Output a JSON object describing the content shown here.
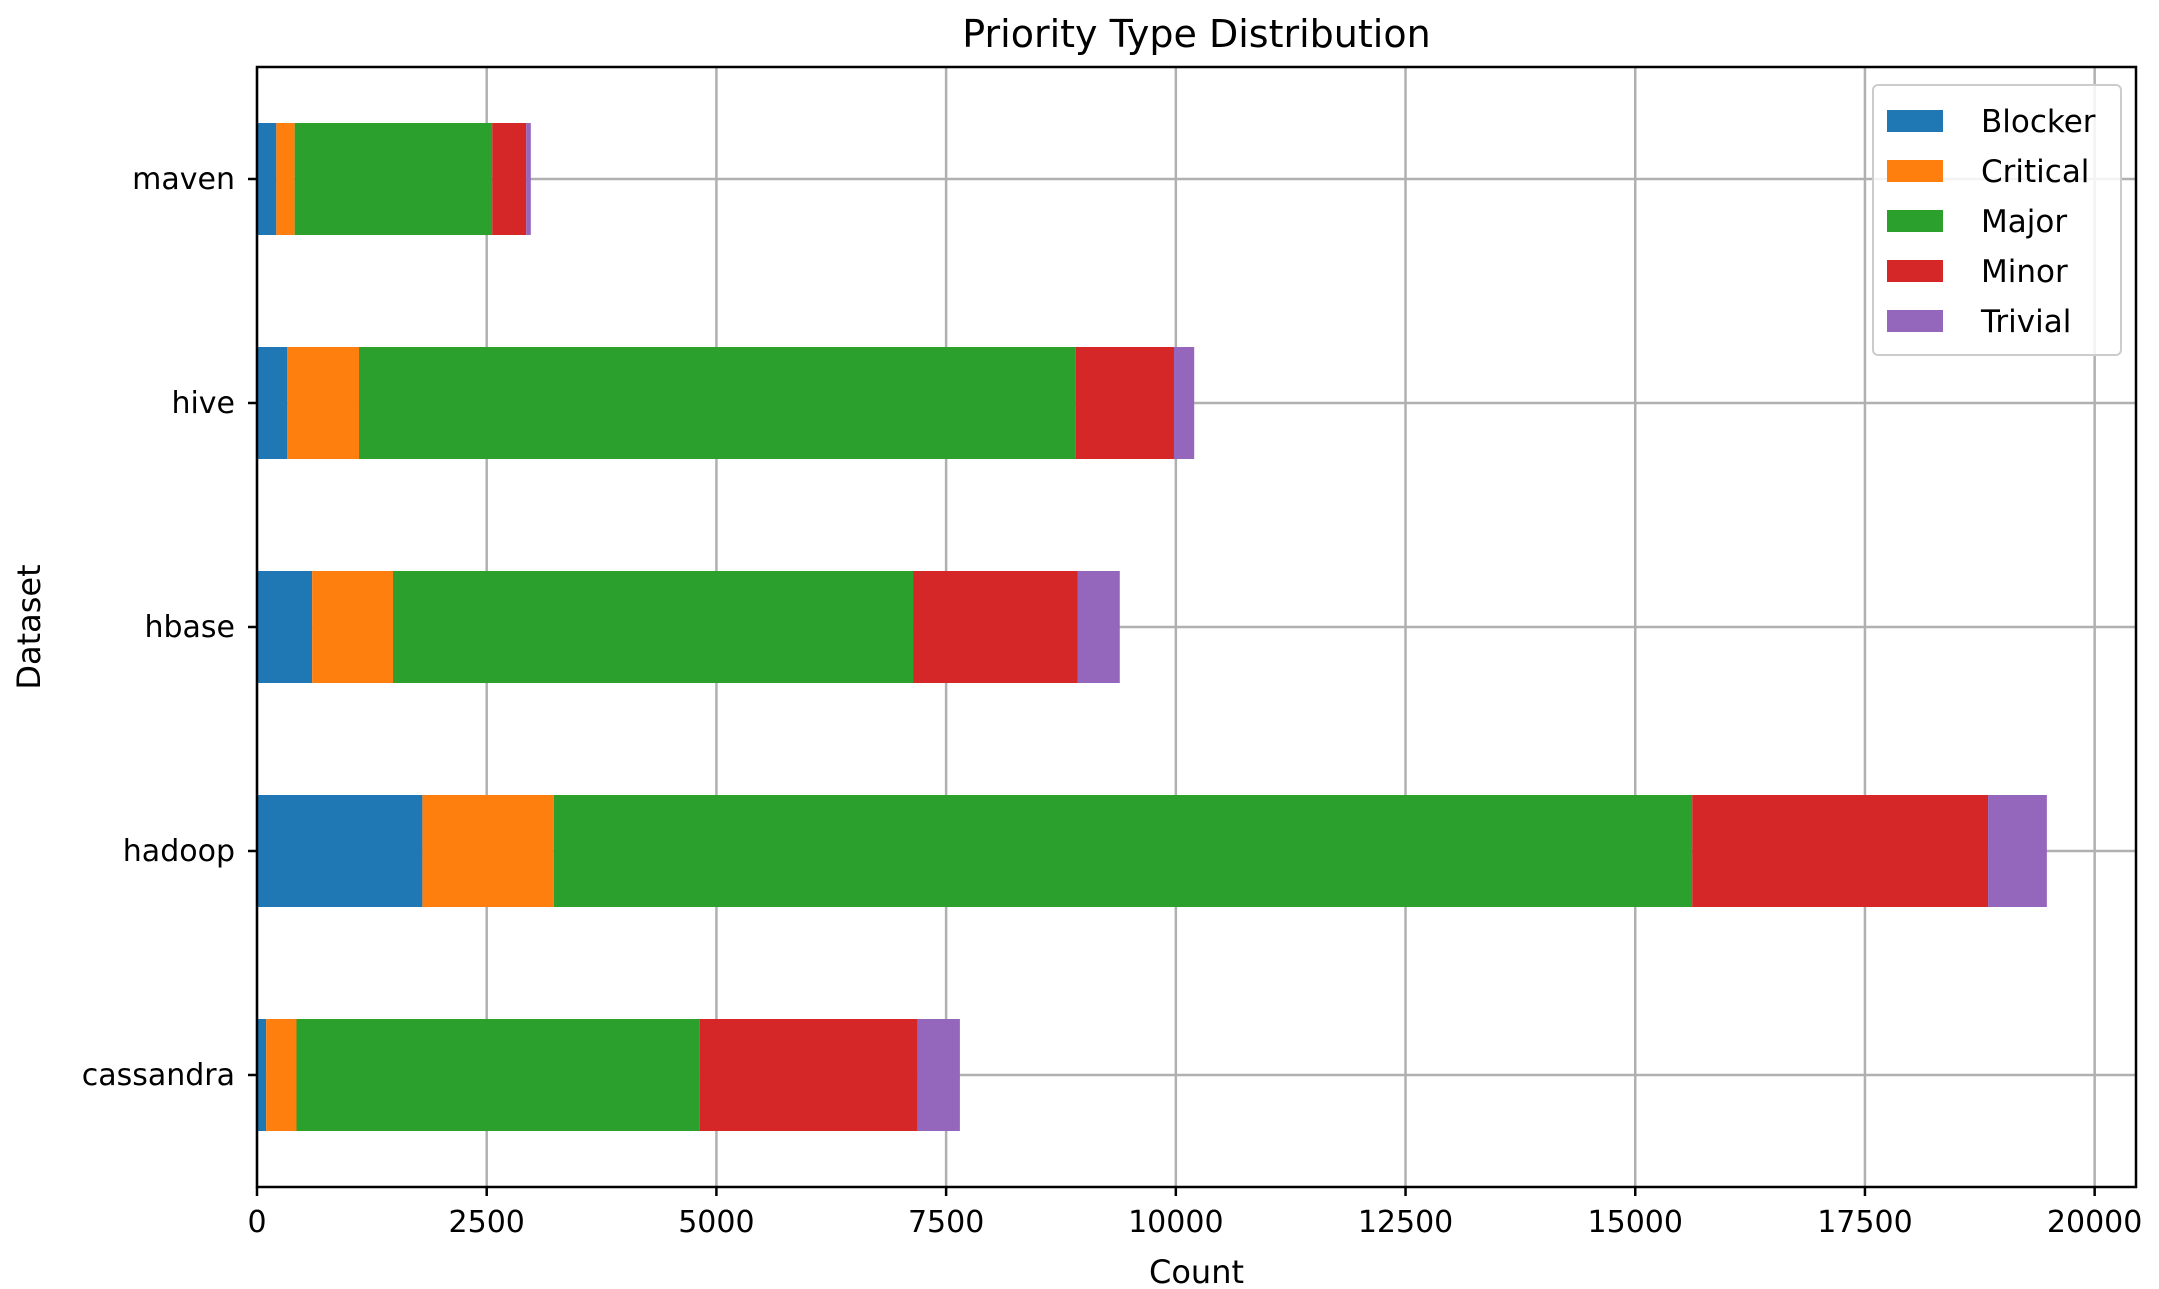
{
  "chart_data": {
    "type": "bar",
    "orientation": "horizontal",
    "stacked": true,
    "title": "Priority Type Distribution",
    "xlabel": "Count",
    "ylabel": "Dataset",
    "xlim": [
      0,
      20450
    ],
    "x_ticks": [
      0,
      2500,
      5000,
      7500,
      10000,
      12500,
      15000,
      17500,
      20000
    ],
    "grid": true,
    "legend_position": "top-right",
    "categories": [
      "cassandra",
      "hadoop",
      "hbase",
      "hive",
      "maven"
    ],
    "series": [
      {
        "name": "Blocker",
        "color": "#1f77b4",
        "values": [
          100,
          1800,
          600,
          330,
          210
        ]
      },
      {
        "name": "Critical",
        "color": "#ff7f0e",
        "values": [
          330,
          1430,
          880,
          780,
          200
        ]
      },
      {
        "name": "Major",
        "color": "#2ca02c",
        "values": [
          4390,
          12390,
          5660,
          7800,
          2150
        ]
      },
      {
        "name": "Minor",
        "color": "#d62728",
        "values": [
          2370,
          3220,
          1790,
          1070,
          370
        ]
      },
      {
        "name": "Trivial",
        "color": "#9467bd",
        "values": [
          460,
          640,
          460,
          220,
          50
        ]
      }
    ]
  }
}
